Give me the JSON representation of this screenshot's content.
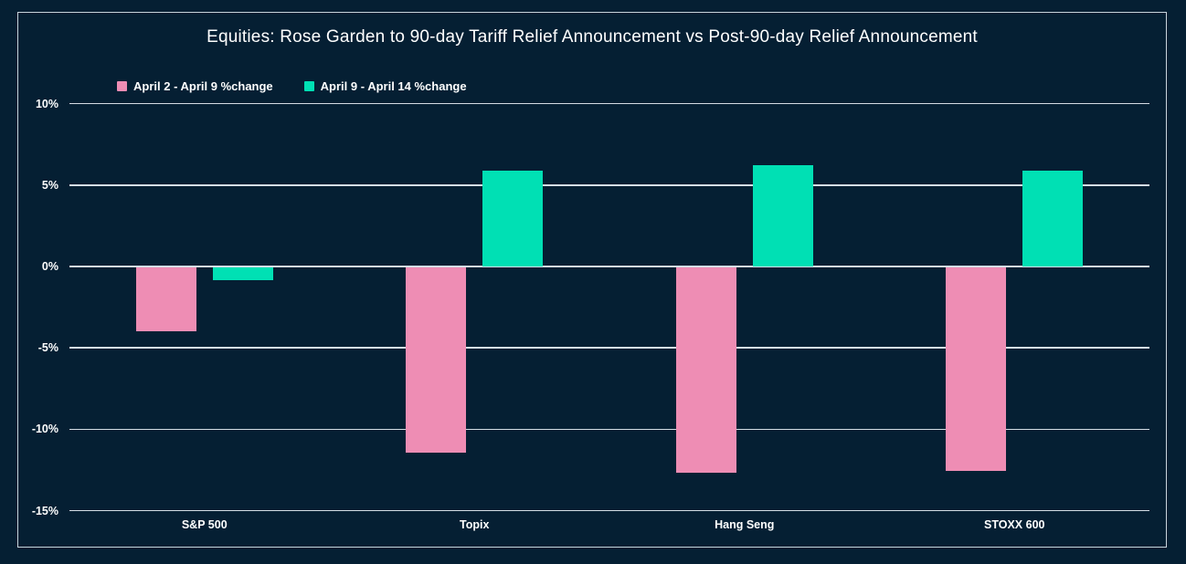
{
  "window": {
    "background": "#051F33",
    "frame_border_color": "#C9D4DC"
  },
  "chart_data": {
    "type": "bar",
    "title": "Equities: Rose Garden to 90-day Tariff Relief Announcement vs Post-90-day Relief Announcement",
    "categories": [
      "S&P 500",
      "Topix",
      "Hang Seng",
      "STOXX 600"
    ],
    "series": [
      {
        "name": "April 2 - April 9 %change",
        "color": "#EE8DB4",
        "values": [
          -3.9,
          -11.4,
          -12.6,
          -12.5
        ]
      },
      {
        "name": "April 9 - April 14 %change",
        "color": "#00E0B4",
        "values": [
          -0.8,
          5.9,
          6.2,
          5.9
        ]
      }
    ],
    "ylim": [
      -15,
      10
    ],
    "yticks": [
      10,
      5,
      0,
      -5,
      -10,
      -15
    ],
    "ytick_labels": [
      "10%",
      "5%",
      "0%",
      "-5%",
      "-10%",
      "-15%"
    ],
    "grid": true,
    "gridline_color": "rgba(231,238,244,0.92)",
    "legend_position": "top-left",
    "text_color": "#FFFFFF"
  }
}
